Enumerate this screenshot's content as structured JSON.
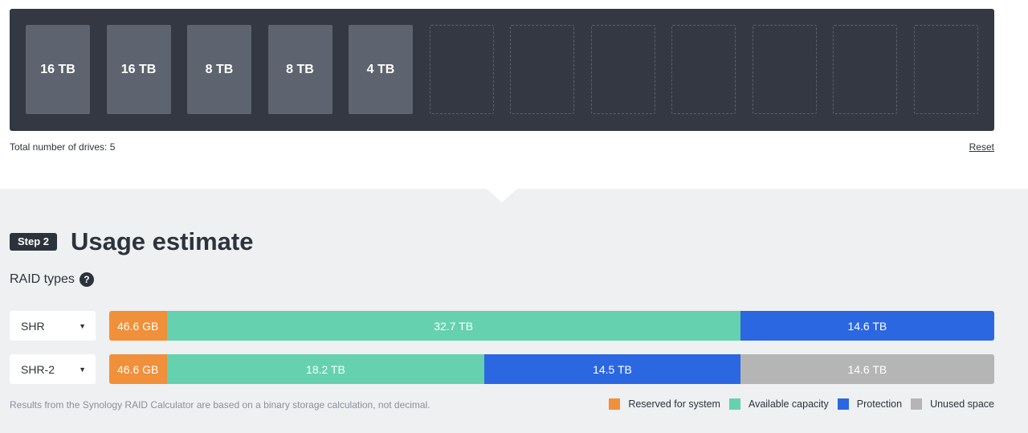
{
  "drive_tray": {
    "slots": [
      {
        "label": "16 TB",
        "filled": true
      },
      {
        "label": "16 TB",
        "filled": true
      },
      {
        "label": "8 TB",
        "filled": true
      },
      {
        "label": "8 TB",
        "filled": true
      },
      {
        "label": "4 TB",
        "filled": true
      },
      {
        "label": "",
        "filled": false
      },
      {
        "label": "",
        "filled": false
      },
      {
        "label": "",
        "filled": false
      },
      {
        "label": "",
        "filled": false
      },
      {
        "label": "",
        "filled": false
      },
      {
        "label": "",
        "filled": false
      },
      {
        "label": "",
        "filled": false
      }
    ]
  },
  "total_drives_text": "Total number of drives: 5",
  "reset_label": "Reset",
  "step": {
    "badge": "Step 2",
    "title": "Usage estimate"
  },
  "raid_types_label": "RAID types",
  "help_glyph": "?",
  "raid_rows": [
    {
      "select_value": "SHR",
      "segments": [
        {
          "type": "reserved",
          "label": "46.6 GB",
          "fraction": 0.065
        },
        {
          "type": "available",
          "label": "32.7 TB",
          "fraction": 0.648
        },
        {
          "type": "protection",
          "label": "14.6 TB",
          "fraction": 0.287
        }
      ]
    },
    {
      "select_value": "SHR-2",
      "segments": [
        {
          "type": "reserved",
          "label": "46.6 GB",
          "fraction": 0.065
        },
        {
          "type": "available",
          "label": "18.2 TB",
          "fraction": 0.359
        },
        {
          "type": "protection",
          "label": "14.5 TB",
          "fraction": 0.289
        },
        {
          "type": "unused",
          "label": "14.6 TB",
          "fraction": 0.287
        }
      ]
    }
  ],
  "footnote": "Results from the Synology RAID Calculator are based on a binary storage calculation, not decimal.",
  "legend": [
    {
      "type": "reserved",
      "label": "Reserved for system",
      "color": "#f0903a"
    },
    {
      "type": "available",
      "label": "Available capacity",
      "color": "#65d1ae"
    },
    {
      "type": "protection",
      "label": "Protection",
      "color": "#2b67e0"
    },
    {
      "type": "unused",
      "label": "Unused space",
      "color": "#b5b5b5"
    }
  ]
}
